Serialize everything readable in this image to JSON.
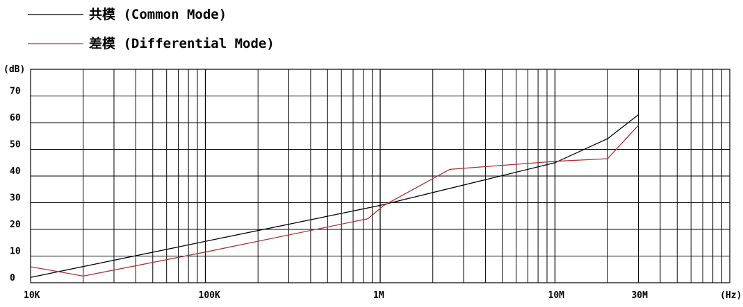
{
  "chart_data": {
    "type": "line",
    "x_scale": "log",
    "x_unit_label": "(Hz)",
    "y_unit_label": "(dB)",
    "xlim": [
      10000,
      100000000
    ],
    "ylim": [
      0,
      80
    ],
    "grid": true,
    "legend_position": "top-left",
    "x_tick_labels": [
      {
        "value": 10000,
        "label": "10K"
      },
      {
        "value": 100000,
        "label": "100K"
      },
      {
        "value": 1000000,
        "label": "1M"
      },
      {
        "value": 10000000,
        "label": "10M"
      },
      {
        "value": 30000000,
        "label": "30M"
      }
    ],
    "y_tick_labels": [
      {
        "value": 0,
        "label": "0"
      },
      {
        "value": 10,
        "label": "10"
      },
      {
        "value": 20,
        "label": "20"
      },
      {
        "value": 30,
        "label": "30"
      },
      {
        "value": 40,
        "label": "40"
      },
      {
        "value": 50,
        "label": "50"
      },
      {
        "value": 60,
        "label": "60"
      },
      {
        "value": 70,
        "label": "70"
      }
    ],
    "series": [
      {
        "name": "共模 (Common Mode)",
        "color": "#000000",
        "points": [
          [
            10000,
            2
          ],
          [
            100000,
            15.5
          ],
          [
            1000000,
            29
          ],
          [
            10000000,
            45
          ],
          [
            20000000,
            54
          ],
          [
            30000000,
            63
          ]
        ]
      },
      {
        "name": "差模 (Differential Mode)",
        "color": "#b03030",
        "points": [
          [
            10000,
            6
          ],
          [
            20000,
            2.5
          ],
          [
            100000,
            11.5
          ],
          [
            850000,
            24
          ],
          [
            1050000,
            29
          ],
          [
            2500000,
            42.5
          ],
          [
            10000000,
            45.5
          ],
          [
            20000000,
            46.5
          ],
          [
            30000000,
            59
          ]
        ]
      }
    ]
  }
}
